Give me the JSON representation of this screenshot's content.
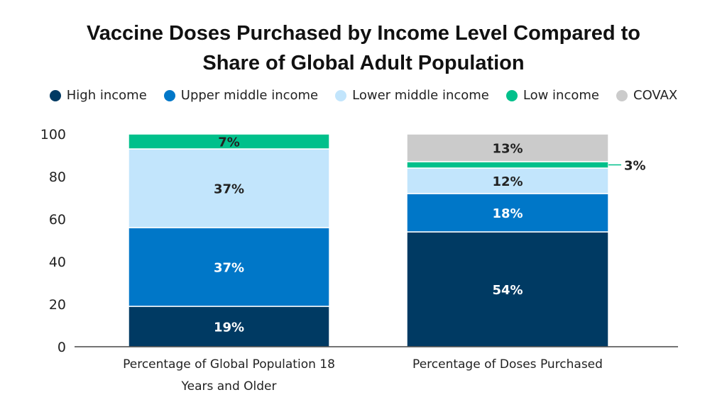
{
  "chart_data": {
    "type": "bar",
    "stacked": true,
    "title_lines": [
      "Vaccine Doses Purchased by Income Level Compared to",
      "Share of Global Adult Population"
    ],
    "categories": [
      [
        "Percentage of Global Population 18",
        "Years and Older"
      ],
      [
        "Percentage of Doses Purchased"
      ]
    ],
    "ylim": [
      0,
      100
    ],
    "yticks": [
      0,
      20,
      40,
      60,
      80,
      100
    ],
    "grid": false,
    "legend_position": "top",
    "series": [
      {
        "name": "High income",
        "color": "#003a63",
        "label_color": "#ffffff",
        "values": [
          19,
          54
        ]
      },
      {
        "name": "Upper middle income",
        "color": "#0077c8",
        "label_color": "#ffffff",
        "values": [
          37,
          18
        ]
      },
      {
        "name": "Lower middle income",
        "color": "#c2e5fc",
        "label_color": "#222222",
        "values": [
          37,
          12
        ]
      },
      {
        "name": "Low income",
        "color": "#00c08b",
        "label_color": "#222222",
        "values": [
          7,
          3
        ]
      },
      {
        "name": "COVAX",
        "color": "#cbcbcb",
        "label_color": "#222222",
        "values": [
          0,
          13
        ]
      }
    ],
    "data_label_suffix": "%"
  }
}
